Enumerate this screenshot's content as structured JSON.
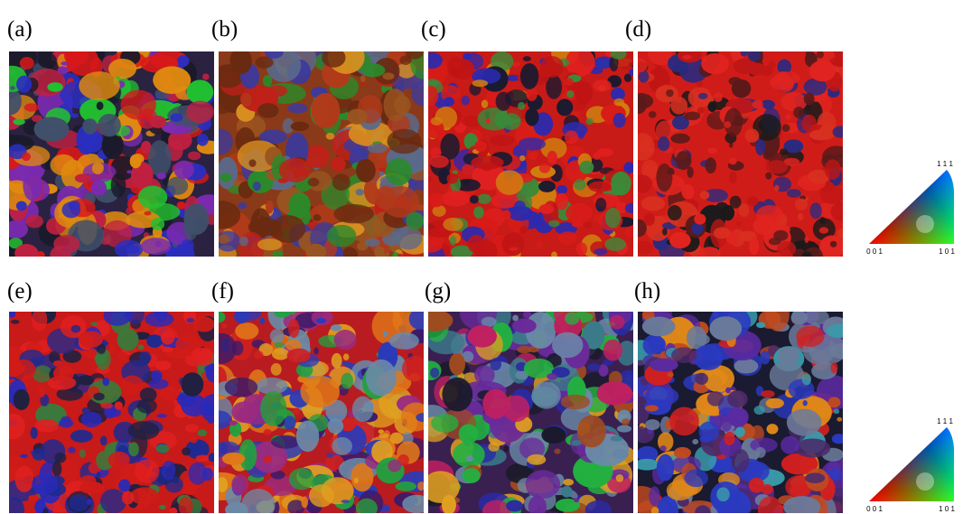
{
  "panels": [
    {
      "label": "(a)"
    },
    {
      "label": "(b)"
    },
    {
      "label": "(c)"
    },
    {
      "label": "(d)"
    },
    {
      "label": "(e)"
    },
    {
      "label": "(f)"
    },
    {
      "label": "(g)"
    },
    {
      "label": "(h)"
    }
  ],
  "legends": [
    {
      "corner_top": "1 1 1",
      "corner_left": "0 0 1",
      "corner_right": "1 0 1"
    },
    {
      "corner_top": "1 1 1",
      "corner_left": "0 0 1",
      "corner_right": "1 0 1"
    }
  ]
}
